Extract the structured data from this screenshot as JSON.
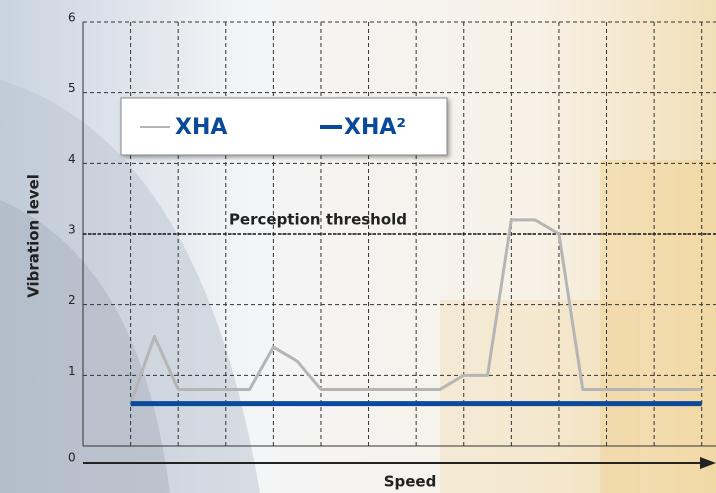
{
  "chart_data": {
    "type": "line",
    "ylabel": "Vibration level",
    "xlabel": "Speed",
    "x": [
      0,
      1,
      2,
      3,
      4,
      5,
      6,
      7,
      8,
      9,
      10,
      11,
      12,
      13,
      14,
      15,
      16,
      17,
      18,
      19,
      20,
      21,
      22,
      23,
      24
    ],
    "series": [
      {
        "name": "XHA",
        "color": "#b5b5b5",
        "values": [
          0.6,
          1.55,
          0.8,
          0.8,
          0.8,
          0.8,
          1.4,
          1.2,
          0.8,
          0.8,
          0.8,
          0.8,
          0.8,
          0.8,
          1.0,
          1.0,
          3.2,
          3.2,
          3.0,
          0.8,
          0.8,
          0.8,
          0.8,
          0.8,
          0.8
        ]
      },
      {
        "name": "XHA²",
        "color": "#0b4a9a",
        "values": [
          0.6,
          0.6,
          0.6,
          0.6,
          0.6,
          0.6,
          0.6,
          0.6,
          0.6,
          0.6,
          0.6,
          0.6,
          0.6,
          0.6,
          0.6,
          0.6,
          0.6,
          0.6,
          0.6,
          0.6,
          0.6,
          0.6,
          0.6,
          0.6,
          0.6
        ]
      }
    ],
    "threshold": {
      "value": 3,
      "label": "Perception threshold"
    },
    "xlim": [
      -2,
      24.6
    ],
    "ylim": [
      0,
      6
    ],
    "yticks": [
      0,
      1,
      2,
      3,
      4,
      5,
      6
    ],
    "grid": true,
    "legend": "upper-left"
  }
}
